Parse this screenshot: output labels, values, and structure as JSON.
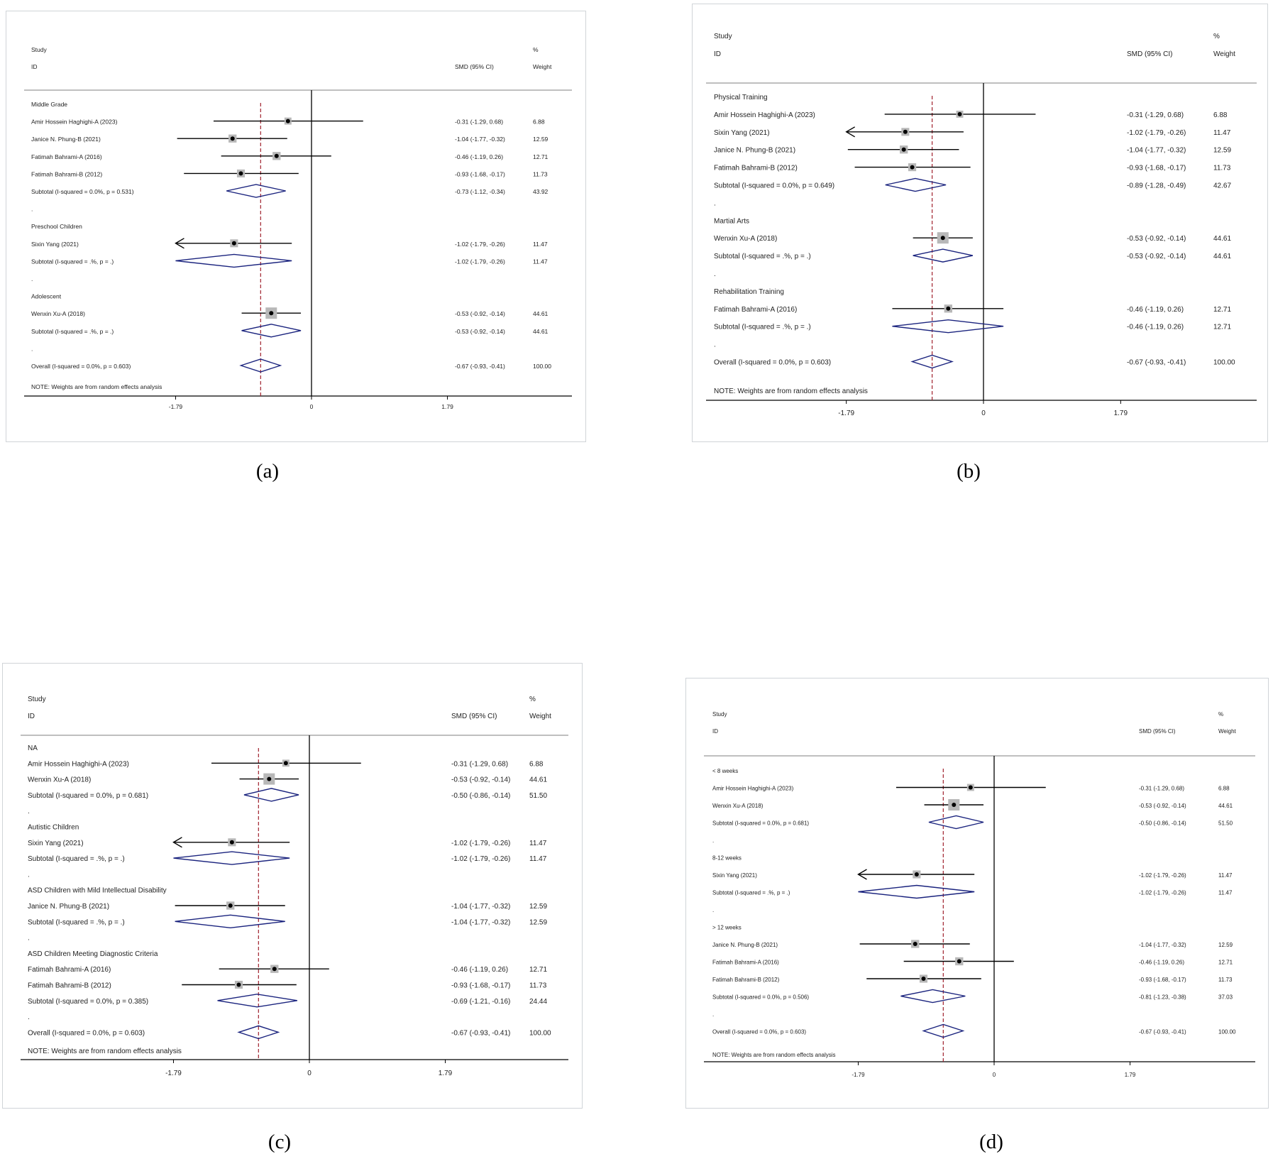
{
  "colors": {
    "diamond": "#1a237e",
    "ref_line": "#a0202c",
    "axis": "#000000",
    "text": "#222222",
    "box": "#b8b8b8",
    "panel_border": "#d0d4d8"
  },
  "chart_data": [
    {
      "type": "forest",
      "caption": "(a)",
      "headers": {
        "study_top": "Study",
        "study_bottom": "ID",
        "smd": "SMD (95% CI)",
        "weight_top": "%",
        "weight_bottom": "Weight"
      },
      "xlim": [
        -1.79,
        1.79
      ],
      "ticks": [
        "-1.79",
        "0",
        "1.79"
      ],
      "overall_line": -0.67,
      "note": "NOTE: Weights are from random effects analysis",
      "rows": [
        {
          "kind": "group",
          "label": "Middle Grade"
        },
        {
          "kind": "study",
          "label": "Amir Hossein Haghighi-A (2023)",
          "est": -0.31,
          "lo": -1.29,
          "hi": 0.68,
          "ci_text": "-0.31 (-1.29, 0.68)",
          "weight": "6.88"
        },
        {
          "kind": "study",
          "label": "Janice N. Phung-B (2021)",
          "est": -1.04,
          "lo": -1.77,
          "hi": -0.32,
          "ci_text": "-1.04 (-1.77, -0.32)",
          "weight": "12.59"
        },
        {
          "kind": "study",
          "label": "Fatimah Bahrami-A (2016)",
          "est": -0.46,
          "lo": -1.19,
          "hi": 0.26,
          "ci_text": "-0.46 (-1.19, 0.26)",
          "weight": "12.71"
        },
        {
          "kind": "study",
          "label": "Fatimah Bahrami-B (2012)",
          "est": -0.93,
          "lo": -1.68,
          "hi": -0.17,
          "ci_text": "-0.93 (-1.68, -0.17)",
          "weight": "11.73"
        },
        {
          "kind": "subtotal",
          "label": "Subtotal  (I-squared = 0.0%, p = 0.531)",
          "est": -0.73,
          "lo": -1.12,
          "hi": -0.34,
          "ci_text": "-0.73 (-1.12, -0.34)",
          "weight": "43.92"
        },
        {
          "kind": "dot"
        },
        {
          "kind": "group",
          "label": "Preschool Children"
        },
        {
          "kind": "study",
          "label": "Sixin Yang (2021)",
          "est": -1.02,
          "lo": -1.79,
          "hi": -0.26,
          "arrow": true,
          "ci_text": "-1.02 (-1.79, -0.26)",
          "weight": "11.47"
        },
        {
          "kind": "subtotal",
          "label": "Subtotal  (I-squared = .%, p = .)",
          "est": -1.02,
          "lo": -1.79,
          "hi": -0.26,
          "ci_text": "-1.02 (-1.79, -0.26)",
          "weight": "11.47"
        },
        {
          "kind": "dot"
        },
        {
          "kind": "group",
          "label": "Adolescent"
        },
        {
          "kind": "study",
          "label": "Wenxin Xu-A (2018)",
          "est": -0.53,
          "lo": -0.92,
          "hi": -0.14,
          "ci_text": "-0.53 (-0.92, -0.14)",
          "weight": "44.61"
        },
        {
          "kind": "subtotal",
          "label": "Subtotal  (I-squared = .%, p = .)",
          "est": -0.53,
          "lo": -0.92,
          "hi": -0.14,
          "ci_text": "-0.53 (-0.92, -0.14)",
          "weight": "44.61"
        },
        {
          "kind": "dot"
        },
        {
          "kind": "overall",
          "label": "Overall  (I-squared = 0.0%, p = 0.603)",
          "est": -0.67,
          "lo": -0.93,
          "hi": -0.41,
          "ci_text": "-0.67 (-0.93, -0.41)",
          "weight": "100.00"
        }
      ]
    },
    {
      "type": "forest",
      "caption": "(b)",
      "headers": {
        "study_top": "Study",
        "study_bottom": "ID",
        "smd": "SMD (95% CI)",
        "weight_top": "%",
        "weight_bottom": "Weight"
      },
      "xlim": [
        -1.79,
        1.79
      ],
      "ticks": [
        "-1.79",
        "0",
        "1.79"
      ],
      "overall_line": -0.67,
      "note": "NOTE: Weights are from random effects analysis",
      "rows": [
        {
          "kind": "group",
          "label": "Physical Training"
        },
        {
          "kind": "study",
          "label": "Amir Hossein Haghighi-A (2023)",
          "est": -0.31,
          "lo": -1.29,
          "hi": 0.68,
          "ci_text": "-0.31 (-1.29, 0.68)",
          "weight": "6.88"
        },
        {
          "kind": "study",
          "label": "Sixin Yang (2021)",
          "est": -1.02,
          "lo": -1.79,
          "hi": -0.26,
          "arrow": true,
          "ci_text": "-1.02 (-1.79, -0.26)",
          "weight": "11.47"
        },
        {
          "kind": "study",
          "label": "Janice N. Phung-B (2021)",
          "est": -1.04,
          "lo": -1.77,
          "hi": -0.32,
          "ci_text": "-1.04 (-1.77, -0.32)",
          "weight": "12.59"
        },
        {
          "kind": "study",
          "label": "Fatimah Bahrami-B (2012)",
          "est": -0.93,
          "lo": -1.68,
          "hi": -0.17,
          "ci_text": "-0.93 (-1.68, -0.17)",
          "weight": "11.73"
        },
        {
          "kind": "subtotal",
          "label": "Subtotal  (I-squared = 0.0%, p = 0.649)",
          "est": -0.89,
          "lo": -1.28,
          "hi": -0.49,
          "ci_text": "-0.89 (-1.28, -0.49)",
          "weight": "42.67"
        },
        {
          "kind": "dot"
        },
        {
          "kind": "group",
          "label": "Martial Arts"
        },
        {
          "kind": "study",
          "label": "Wenxin Xu-A (2018)",
          "est": -0.53,
          "lo": -0.92,
          "hi": -0.14,
          "ci_text": "-0.53 (-0.92, -0.14)",
          "weight": "44.61"
        },
        {
          "kind": "subtotal",
          "label": "Subtotal  (I-squared = .%, p = .)",
          "est": -0.53,
          "lo": -0.92,
          "hi": -0.14,
          "ci_text": "-0.53 (-0.92, -0.14)",
          "weight": "44.61"
        },
        {
          "kind": "dot"
        },
        {
          "kind": "group",
          "label": "Rehabilitation Training"
        },
        {
          "kind": "study",
          "label": "Fatimah Bahrami-A (2016)",
          "est": -0.46,
          "lo": -1.19,
          "hi": 0.26,
          "ci_text": "-0.46 (-1.19, 0.26)",
          "weight": "12.71"
        },
        {
          "kind": "subtotal",
          "label": "Subtotal  (I-squared = .%, p = .)",
          "est": -0.46,
          "lo": -1.19,
          "hi": 0.26,
          "ci_text": "-0.46 (-1.19, 0.26)",
          "weight": "12.71"
        },
        {
          "kind": "dot"
        },
        {
          "kind": "overall",
          "label": "Overall  (I-squared = 0.0%, p = 0.603)",
          "est": -0.67,
          "lo": -0.93,
          "hi": -0.41,
          "ci_text": "-0.67 (-0.93, -0.41)",
          "weight": "100.00"
        }
      ]
    },
    {
      "type": "forest",
      "caption": "(c)",
      "headers": {
        "study_top": "Study",
        "study_bottom": "ID",
        "smd": "SMD (95% CI)",
        "weight_top": "%",
        "weight_bottom": "Weight"
      },
      "xlim": [
        -1.79,
        1.79
      ],
      "ticks": [
        "-1.79",
        "0",
        "1.79"
      ],
      "overall_line": -0.67,
      "note": "NOTE: Weights are from random effects analysis",
      "rows": [
        {
          "kind": "group",
          "label": "NA"
        },
        {
          "kind": "study",
          "label": "Amir Hossein Haghighi-A (2023)",
          "est": -0.31,
          "lo": -1.29,
          "hi": 0.68,
          "ci_text": "-0.31 (-1.29, 0.68)",
          "weight": "6.88"
        },
        {
          "kind": "study",
          "label": "Wenxin Xu-A (2018)",
          "est": -0.53,
          "lo": -0.92,
          "hi": -0.14,
          "ci_text": "-0.53 (-0.92, -0.14)",
          "weight": "44.61"
        },
        {
          "kind": "subtotal",
          "label": "Subtotal  (I-squared = 0.0%, p = 0.681)",
          "est": -0.5,
          "lo": -0.86,
          "hi": -0.14,
          "ci_text": "-0.50 (-0.86, -0.14)",
          "weight": "51.50"
        },
        {
          "kind": "dot"
        },
        {
          "kind": "group",
          "label": "Autistic Children"
        },
        {
          "kind": "study",
          "label": "Sixin Yang (2021)",
          "est": -1.02,
          "lo": -1.79,
          "hi": -0.26,
          "arrow": true,
          "ci_text": "-1.02 (-1.79, -0.26)",
          "weight": "11.47"
        },
        {
          "kind": "subtotal",
          "label": "Subtotal  (I-squared = .%, p = .)",
          "est": -1.02,
          "lo": -1.79,
          "hi": -0.26,
          "ci_text": "-1.02 (-1.79, -0.26)",
          "weight": "11.47"
        },
        {
          "kind": "dot"
        },
        {
          "kind": "group",
          "label": "ASD Children with Mild Intellectual Disability"
        },
        {
          "kind": "study",
          "label": "Janice N. Phung-B (2021)",
          "est": -1.04,
          "lo": -1.77,
          "hi": -0.32,
          "ci_text": "-1.04 (-1.77, -0.32)",
          "weight": "12.59"
        },
        {
          "kind": "subtotal",
          "label": "Subtotal  (I-squared = .%, p = .)",
          "est": -1.04,
          "lo": -1.77,
          "hi": -0.32,
          "ci_text": "-1.04 (-1.77, -0.32)",
          "weight": "12.59"
        },
        {
          "kind": "dot"
        },
        {
          "kind": "group",
          "label": "ASD Children Meeting Diagnostic Criteria"
        },
        {
          "kind": "study",
          "label": "Fatimah Bahrami-A (2016)",
          "est": -0.46,
          "lo": -1.19,
          "hi": 0.26,
          "ci_text": "-0.46 (-1.19, 0.26)",
          "weight": "12.71"
        },
        {
          "kind": "study",
          "label": "Fatimah Bahrami-B (2012)",
          "est": -0.93,
          "lo": -1.68,
          "hi": -0.17,
          "ci_text": "-0.93 (-1.68, -0.17)",
          "weight": "11.73"
        },
        {
          "kind": "subtotal",
          "label": "Subtotal  (I-squared = 0.0%, p = 0.385)",
          "est": -0.69,
          "lo": -1.21,
          "hi": -0.16,
          "ci_text": "-0.69 (-1.21, -0.16)",
          "weight": "24.44"
        },
        {
          "kind": "dot"
        },
        {
          "kind": "overall",
          "label": "Overall  (I-squared = 0.0%, p = 0.603)",
          "est": -0.67,
          "lo": -0.93,
          "hi": -0.41,
          "ci_text": "-0.67 (-0.93, -0.41)",
          "weight": "100.00"
        }
      ]
    },
    {
      "type": "forest",
      "caption": "(d)",
      "headers": {
        "study_top": "Study",
        "study_bottom": "ID",
        "smd": "SMD (95% CI)",
        "weight_top": "%",
        "weight_bottom": "Weight"
      },
      "xlim": [
        -1.79,
        1.79
      ],
      "ticks": [
        "-1.79",
        "0",
        "1.79"
      ],
      "overall_line": -0.67,
      "note": "NOTE: Weights are from random effects analysis",
      "rows": [
        {
          "kind": "group",
          "label": "< 8 weeks"
        },
        {
          "kind": "study",
          "label": "Amir Hossein Haghighi-A (2023)",
          "est": -0.31,
          "lo": -1.29,
          "hi": 0.68,
          "ci_text": "-0.31 (-1.29, 0.68)",
          "weight": "6.88"
        },
        {
          "kind": "study",
          "label": "Wenxin Xu-A (2018)",
          "est": -0.53,
          "lo": -0.92,
          "hi": -0.14,
          "ci_text": "-0.53 (-0.92, -0.14)",
          "weight": "44.61"
        },
        {
          "kind": "subtotal",
          "label": "Subtotal  (I-squared = 0.0%, p = 0.681)",
          "est": -0.5,
          "lo": -0.86,
          "hi": -0.14,
          "ci_text": "-0.50 (-0.86, -0.14)",
          "weight": "51.50"
        },
        {
          "kind": "dot"
        },
        {
          "kind": "group",
          "label": "8-12 weeks"
        },
        {
          "kind": "study",
          "label": "Sixin Yang (2021)",
          "est": -1.02,
          "lo": -1.79,
          "hi": -0.26,
          "arrow": true,
          "ci_text": "-1.02 (-1.79, -0.26)",
          "weight": "11.47"
        },
        {
          "kind": "subtotal",
          "label": "Subtotal  (I-squared = .%, p = .)",
          "est": -1.02,
          "lo": -1.79,
          "hi": -0.26,
          "ci_text": "-1.02 (-1.79, -0.26)",
          "weight": "11.47"
        },
        {
          "kind": "dot"
        },
        {
          "kind": "group",
          "label": "> 12 weeks"
        },
        {
          "kind": "study",
          "label": "Janice N. Phung-B (2021)",
          "est": -1.04,
          "lo": -1.77,
          "hi": -0.32,
          "ci_text": "-1.04 (-1.77, -0.32)",
          "weight": "12.59"
        },
        {
          "kind": "study",
          "label": "Fatimah Bahrami-A (2016)",
          "est": -0.46,
          "lo": -1.19,
          "hi": 0.26,
          "ci_text": "-0.46 (-1.19, 0.26)",
          "weight": "12.71"
        },
        {
          "kind": "study",
          "label": "Fatimah Bahrami-B (2012)",
          "est": -0.93,
          "lo": -1.68,
          "hi": -0.17,
          "ci_text": "-0.93 (-1.68, -0.17)",
          "weight": "11.73"
        },
        {
          "kind": "subtotal",
          "label": "Subtotal  (I-squared = 0.0%, p = 0.506)",
          "est": -0.81,
          "lo": -1.23,
          "hi": -0.38,
          "ci_text": "-0.81 (-1.23, -0.38)",
          "weight": "37.03"
        },
        {
          "kind": "dot"
        },
        {
          "kind": "overall",
          "label": "Overall  (I-squared = 0.0%, p = 0.603)",
          "est": -0.67,
          "lo": -0.93,
          "hi": -0.41,
          "ci_text": "-0.67 (-0.93, -0.41)",
          "weight": "100.00"
        }
      ]
    }
  ]
}
